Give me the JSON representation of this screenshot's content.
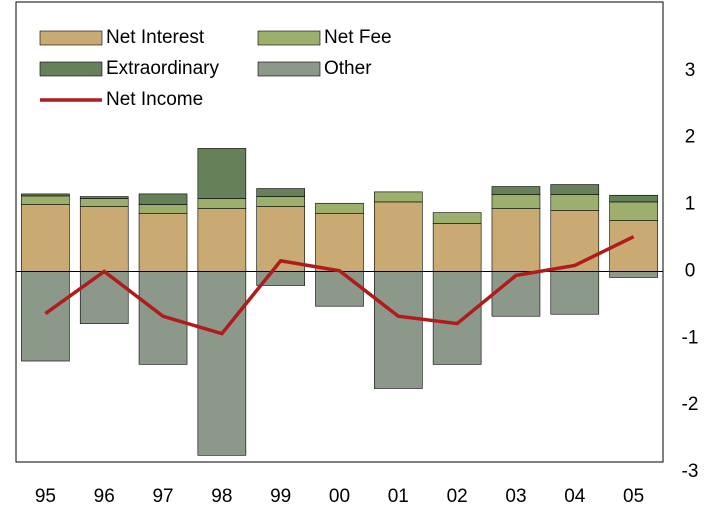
{
  "chart_data": {
    "type": "stacked-bar-line",
    "categories": [
      "95",
      "96",
      "97",
      "98",
      "99",
      "00",
      "01",
      "02",
      "03",
      "04",
      "05"
    ],
    "series": [
      {
        "name": "Net Interest",
        "color": "#c8aa72",
        "stack": "pos",
        "values": [
          1.0,
          0.97,
          0.87,
          0.94,
          0.97,
          0.87,
          1.04,
          0.72,
          0.94,
          0.91,
          0.76
        ]
      },
      {
        "name": "Net Fee",
        "color": "#9caf6d",
        "stack": "pos",
        "values": [
          0.13,
          0.12,
          0.13,
          0.15,
          0.15,
          0.15,
          0.15,
          0.16,
          0.21,
          0.24,
          0.28
        ]
      },
      {
        "name": "Extraordinary",
        "color": "#66805a",
        "stack": "pos",
        "values": [
          0.03,
          0.03,
          0.16,
          0.75,
          0.12,
          0,
          0,
          0,
          0.12,
          0.15,
          0.1
        ]
      },
      {
        "name": "Other",
        "color": "#8c988a",
        "stack": "neg",
        "values": [
          -1.34,
          -0.78,
          -1.39,
          -2.75,
          -0.21,
          -0.52,
          -1.75,
          -1.39,
          -0.67,
          -0.64,
          -0.09
        ]
      },
      {
        "name": "Net Income",
        "color": "#b01c1c",
        "line": true,
        "values": [
          -0.63,
          0.0,
          -0.67,
          -0.93,
          0.16,
          0.01,
          -0.67,
          -0.78,
          -0.06,
          0.09,
          0.52
        ]
      }
    ],
    "ylim": [
      -2.85,
      4.03
    ],
    "yticks": [
      -3,
      -2,
      -1,
      0,
      1,
      2,
      3
    ],
    "legend": "upper-left"
  }
}
